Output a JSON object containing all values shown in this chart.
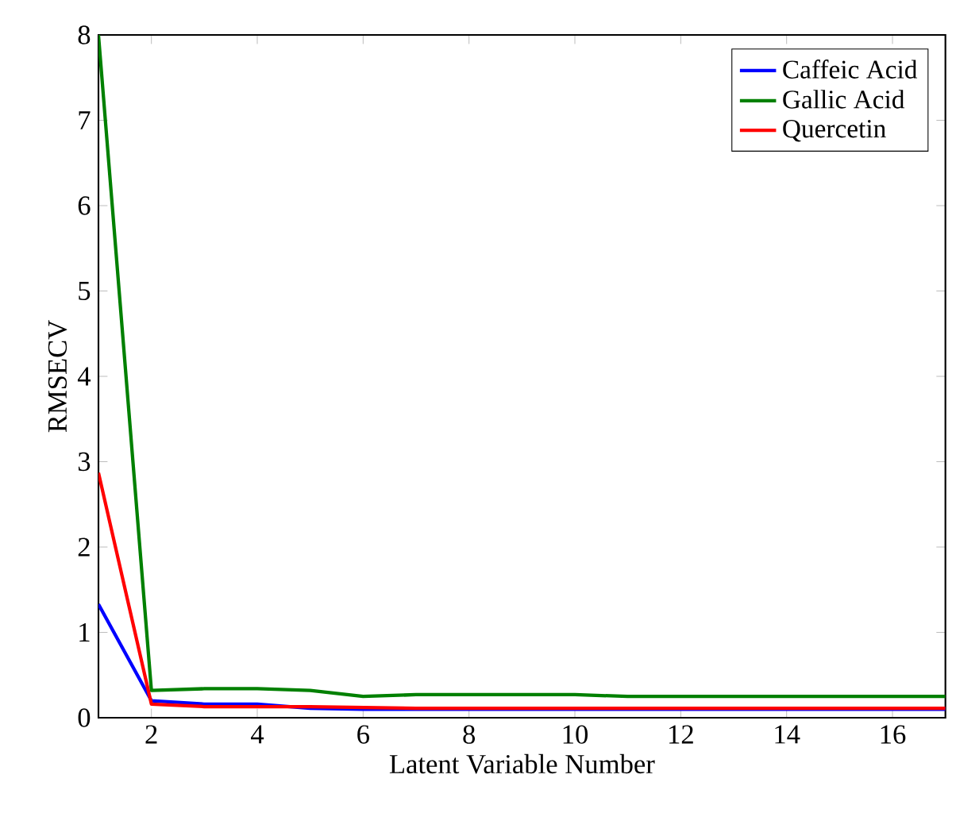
{
  "chart_data": {
    "type": "line",
    "xlabel": "Latent Variable Number",
    "ylabel": "RMSECV",
    "x": [
      1,
      2,
      3,
      4,
      5,
      6,
      7,
      8,
      9,
      10,
      11,
      12,
      13,
      14,
      15,
      16,
      17
    ],
    "xlim": [
      1,
      17
    ],
    "ylim": [
      0,
      8
    ],
    "xticks": [
      2,
      4,
      6,
      8,
      10,
      12,
      14,
      16
    ],
    "yticks": [
      0,
      1,
      2,
      3,
      4,
      5,
      6,
      7,
      8
    ],
    "legend": "top right",
    "grid": false,
    "series": [
      {
        "name": "Caffeic Acid",
        "color": "#0000ff",
        "values": [
          1.33,
          0.2,
          0.16,
          0.16,
          0.11,
          0.1,
          0.1,
          0.1,
          0.1,
          0.1,
          0.1,
          0.1,
          0.1,
          0.1,
          0.1,
          0.1,
          0.1
        ]
      },
      {
        "name": "Gallic Acid",
        "color": "#008000",
        "values": [
          8,
          0.32,
          0.34,
          0.34,
          0.32,
          0.25,
          0.27,
          0.27,
          0.27,
          0.27,
          0.25,
          0.25,
          0.25,
          0.25,
          0.25,
          0.25,
          0.25
        ]
      },
      {
        "name": "Quercetin",
        "color": "#ff0000",
        "values": [
          2.87,
          0.16,
          0.13,
          0.13,
          0.13,
          0.12,
          0.11,
          0.11,
          0.11,
          0.11,
          0.11,
          0.11,
          0.11,
          0.11,
          0.11,
          0.11,
          0.11
        ]
      }
    ]
  }
}
